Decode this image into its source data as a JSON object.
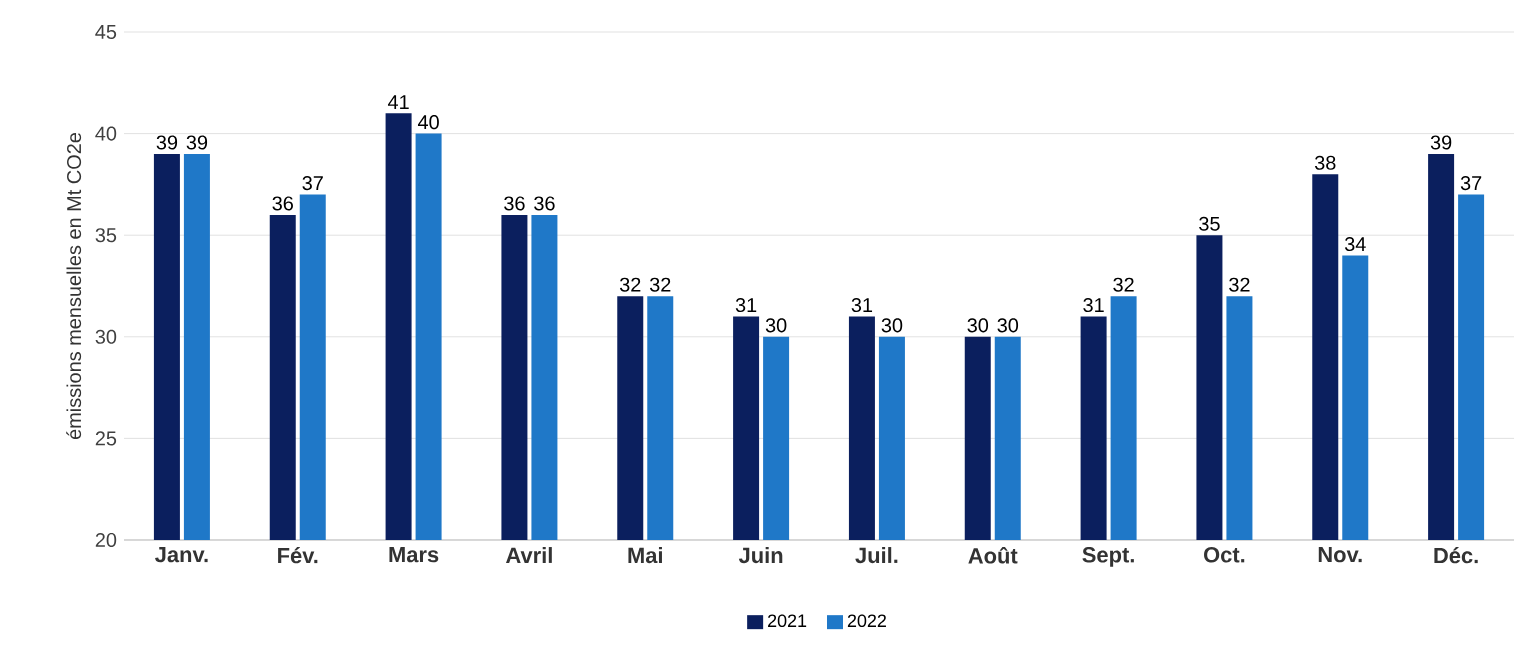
{
  "chart_data": {
    "type": "bar",
    "ylabel": "émissions mensuelles en Mt CO2e",
    "categories": [
      "Janv.",
      "Fév.",
      "Mars",
      "Avril",
      "Mai",
      "Juin",
      "Juil.",
      "Août",
      "Sept.",
      "Oct.",
      "Nov.",
      "Déc."
    ],
    "series": [
      {
        "name": "2021",
        "color": "#0b1f5e",
        "values": [
          39,
          36,
          41,
          36,
          32,
          31,
          31,
          30,
          31,
          35,
          38,
          39
        ]
      },
      {
        "name": "2022",
        "color": "#1f78c8",
        "values": [
          39,
          37,
          40,
          36,
          32,
          30,
          30,
          30,
          32,
          32,
          34,
          37
        ]
      }
    ],
    "ylim": [
      20,
      45
    ],
    "yticks": [
      20,
      25,
      30,
      35,
      40,
      45
    ],
    "grid": "y",
    "legend": "bottom",
    "data_labels": true
  }
}
